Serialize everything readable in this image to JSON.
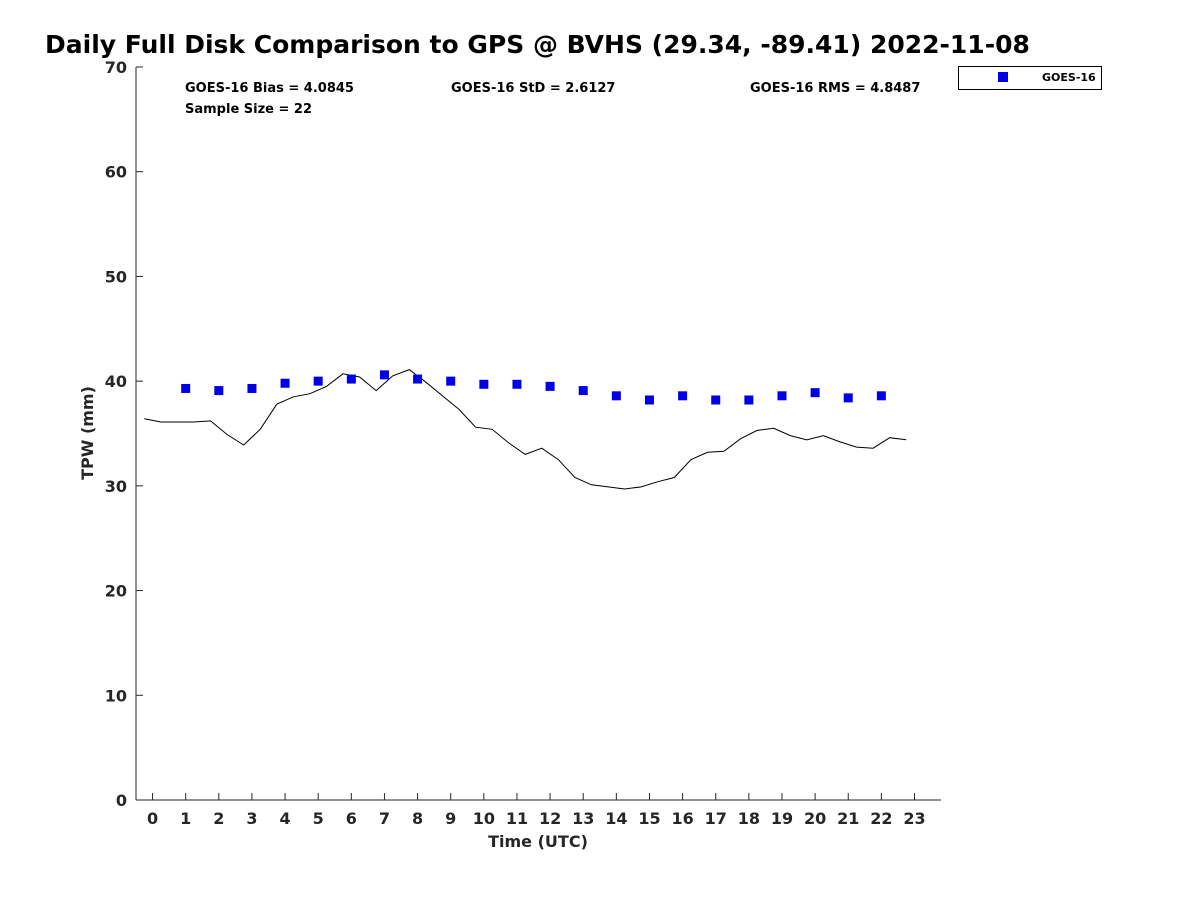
{
  "chart_data": {
    "type": "scatter",
    "title": "Daily Full Disk Comparison to GPS @ BVHS (29.34, -89.41) 2022-11-08",
    "xlabel": "Time (UTC)",
    "ylabel": "TPW (mm)",
    "xlim": [
      -0.5,
      23.8
    ],
    "ylim": [
      0,
      70
    ],
    "xticks": [
      0,
      1,
      2,
      3,
      4,
      5,
      6,
      7,
      8,
      9,
      10,
      11,
      12,
      13,
      14,
      15,
      16,
      17,
      18,
      19,
      20,
      21,
      22,
      23
    ],
    "yticks": [
      0,
      10,
      20,
      30,
      40,
      50,
      60,
      70
    ],
    "grid": false,
    "legend": {
      "placement": "top-right-outside",
      "entries": [
        "GOES-16"
      ]
    },
    "stats": {
      "bias": "GOES-16 Bias = 4.0845",
      "std": "GOES-16 StD = 2.6127",
      "rms": "GOES-16 RMS = 4.8487",
      "sample": "Sample Size = 22"
    },
    "series": [
      {
        "name": "GOES-16",
        "style": "marker",
        "color": "#0000e6",
        "x": [
          1,
          2,
          3,
          4,
          5,
          6,
          7,
          8,
          9,
          10,
          11,
          12,
          13,
          14,
          15,
          16,
          17,
          18,
          19,
          20,
          21,
          22
        ],
        "y": [
          39.3,
          39.1,
          39.3,
          39.8,
          40.0,
          40.2,
          40.6,
          40.2,
          40.0,
          39.7,
          39.7,
          39.5,
          39.1,
          38.6,
          38.2,
          38.6,
          38.2,
          38.2,
          38.6,
          38.9,
          38.4,
          38.6
        ]
      },
      {
        "style": "line",
        "color": "#000000",
        "x": [
          -0.25,
          0.25,
          0.75,
          1.25,
          1.75,
          2.25,
          2.75,
          3.25,
          3.75,
          4.25,
          4.75,
          5.25,
          5.75,
          6.25,
          6.75,
          7.25,
          7.75,
          8.25,
          8.75,
          9.25,
          9.75,
          10.25,
          10.75,
          11.25,
          11.75,
          12.25,
          12.75,
          13.25,
          13.75,
          14.25,
          14.75,
          15.25,
          15.75,
          16.25,
          16.75,
          17.25,
          17.75,
          18.25,
          18.75,
          19.25,
          19.75,
          20.25,
          20.75,
          21.25,
          21.75,
          22.25,
          22.75
        ],
        "y": [
          36.4,
          36.1,
          36.1,
          36.1,
          36.2,
          34.9,
          33.9,
          35.4,
          37.8,
          38.5,
          38.8,
          39.5,
          40.7,
          40.4,
          39.1,
          40.5,
          41.1,
          39.9,
          38.6,
          37.3,
          35.6,
          35.4,
          34.1,
          33.0,
          33.6,
          32.5,
          30.8,
          30.1,
          29.9,
          29.7,
          29.9,
          30.4,
          30.8,
          32.5,
          33.2,
          33.3,
          34.5,
          35.3,
          35.5,
          34.8,
          34.4,
          34.8,
          34.2,
          33.7,
          33.6,
          34.6,
          34.4
        ]
      }
    ]
  }
}
